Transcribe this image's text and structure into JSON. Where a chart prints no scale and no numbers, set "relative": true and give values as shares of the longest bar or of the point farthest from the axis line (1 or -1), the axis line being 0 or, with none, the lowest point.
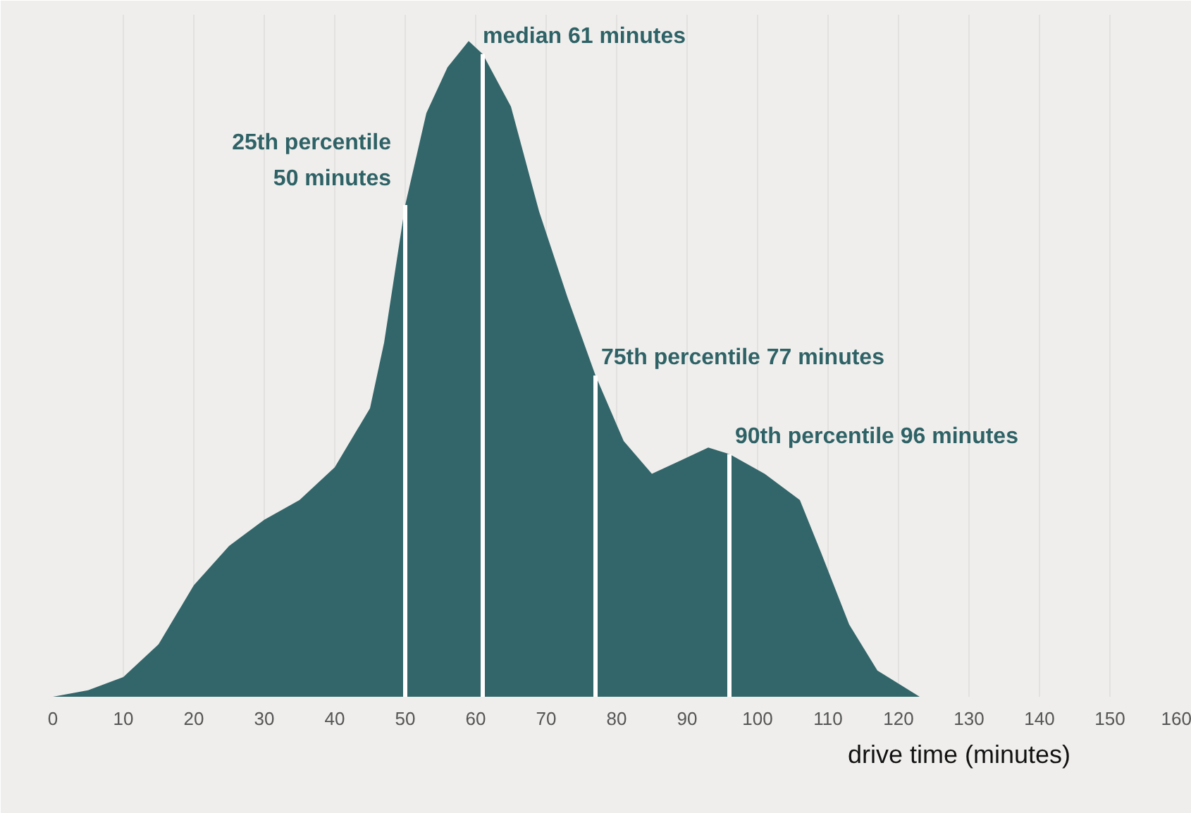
{
  "chart_data": {
    "type": "area",
    "relative": true,
    "xlabel": "drive time (minutes)",
    "x": [
      0,
      5,
      10,
      15,
      20,
      25,
      30,
      35,
      40,
      45,
      47,
      50,
      53,
      56,
      59,
      61,
      65,
      69,
      73,
      77,
      81,
      85,
      89,
      93,
      96,
      101,
      106,
      109,
      113,
      117,
      123
    ],
    "series": [
      {
        "color": "#33666a",
        "values": [
          0,
          0.01,
          0.03,
          0.08,
          0.17,
          0.23,
          0.27,
          0.3,
          0.35,
          0.44,
          0.54,
          0.75,
          0.89,
          0.96,
          1.0,
          0.98,
          0.9,
          0.74,
          0.61,
          0.49,
          0.39,
          0.34,
          0.36,
          0.38,
          0.37,
          0.34,
          0.3,
          0.22,
          0.11,
          0.04,
          0
        ]
      }
    ],
    "xlim": [
      0,
      160
    ],
    "xticks": [
      0,
      10,
      20,
      30,
      40,
      50,
      60,
      70,
      80,
      90,
      100,
      110,
      120,
      130,
      140,
      150,
      160
    ],
    "grid": "x",
    "ref_lines": [
      {
        "axis": "x",
        "value": 50,
        "label": "25th percentile\n50 minutes",
        "color": "#ffffff"
      },
      {
        "axis": "x",
        "value": 61,
        "label": "median 61 minutes",
        "color": "#ffffff"
      },
      {
        "axis": "x",
        "value": 77,
        "label": "75th percentile 77 minutes",
        "color": "#ffffff"
      },
      {
        "axis": "x",
        "value": 96,
        "label": "90th percentile 96 minutes",
        "color": "#ffffff"
      }
    ]
  }
}
